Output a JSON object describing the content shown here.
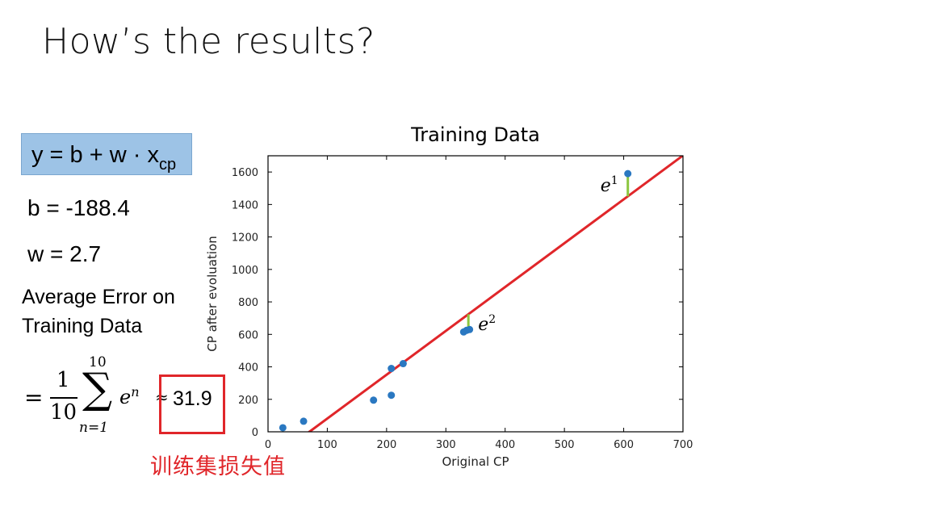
{
  "slide": {
    "title": "How’s the results?",
    "formula": {
      "main": "y = b + w · x",
      "subscript": "cp"
    },
    "b_label": "b = -188.4",
    "w_label": "w = 2.7",
    "avg_label_line1": "Average Error on",
    "avg_label_line2": "Training Data",
    "eq": {
      "equals": "=",
      "numerator": "1",
      "denominator": "10",
      "sum_upper": "10",
      "sum_lower": "n=1",
      "sigma": "∑",
      "term_base": "e",
      "term_sup": "n",
      "approx": "≈"
    },
    "result": "31.9",
    "caption_cn": "训练集损失值",
    "accent_color": "#e0262a"
  },
  "chart_data": {
    "type": "scatter",
    "title": "Training Data",
    "xlabel": "Original CP",
    "ylabel": "CP after evoluation",
    "xlim": [
      0,
      700
    ],
    "ylim": [
      0,
      1700
    ],
    "xticks": [
      0,
      100,
      200,
      300,
      400,
      500,
      600,
      700
    ],
    "yticks": [
      0,
      200,
      400,
      600,
      800,
      1000,
      1200,
      1400,
      1600
    ],
    "points": [
      {
        "x": 25,
        "y": 25
      },
      {
        "x": 60,
        "y": 65
      },
      {
        "x": 178,
        "y": 195
      },
      {
        "x": 208,
        "y": 225
      },
      {
        "x": 208,
        "y": 390
      },
      {
        "x": 228,
        "y": 420
      },
      {
        "x": 330,
        "y": 615
      },
      {
        "x": 335,
        "y": 625
      },
      {
        "x": 340,
        "y": 630
      },
      {
        "x": 607,
        "y": 1590
      }
    ],
    "fit_line": {
      "b": -188.4,
      "w": 2.7,
      "color": "#e0262a"
    },
    "point_color": "#2a78c1",
    "error_color": "#8cc63f",
    "annotations": [
      {
        "label": "e",
        "sup": "1",
        "x": 607,
        "y_point": 1590,
        "y_line": 1450
      },
      {
        "label": "e",
        "sup": "2",
        "x": 338,
        "y_point": 627,
        "y_line": 724
      }
    ]
  }
}
